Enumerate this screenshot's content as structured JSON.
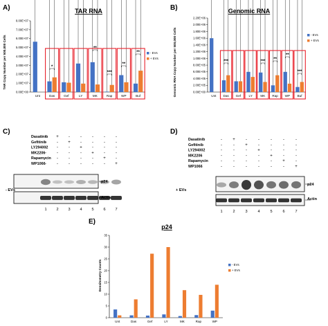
{
  "colors": {
    "minus_ev": "#4472c4",
    "plus_ev": "#ed7d31",
    "highlight": "#e8202a"
  },
  "panels": {
    "a": {
      "label": "A)",
      "title": "TAR RNA",
      "ylabel": "TAR Copy Number per 500,000 Cells",
      "sig": [
        "*",
        "**",
        "***",
        "**",
        "**"
      ]
    },
    "b": {
      "label": "B)",
      "title": "Genomic RNA",
      "ylabel": "Genomic RNA Copy Number per 500,000 Cells",
      "sig": [
        "***",
        "***",
        "**",
        "**",
        "***"
      ]
    },
    "c": {
      "label": "C)",
      "treatments": [
        "Dasatinib",
        "Gefitinib",
        "LY294002",
        "MK2206",
        "Rapamycin",
        "WP1066"
      ],
      "side_label": "- EVs",
      "band_top": "p24",
      "band_bottom": "Actin"
    },
    "d": {
      "label": "D)",
      "treatments": [
        "Dasatinib",
        "Gefitinib",
        "LY294002",
        "MK2206",
        "Rapamycin",
        "WP1066"
      ],
      "side_label": "+ EVs",
      "band_top": "p24",
      "band_bottom": "Actin"
    },
    "e": {
      "label": "E)",
      "title": "p24",
      "ylabel": "Densitometry Counts"
    }
  },
  "blot_matrix": [
    [
      "-",
      "+",
      "-",
      "-",
      "-",
      "-",
      "-"
    ],
    [
      "-",
      "-",
      "+",
      "-",
      "-",
      "-",
      "-"
    ],
    [
      "-",
      "-",
      "-",
      "+",
      "-",
      "-",
      "-"
    ],
    [
      "-",
      "-",
      "-",
      "-",
      "+",
      "-",
      "-"
    ],
    [
      "-",
      "-",
      "-",
      "-",
      "-",
      "+",
      "-"
    ],
    [
      "-",
      "-",
      "-",
      "-",
      "-",
      "-",
      "+"
    ]
  ],
  "lanes": [
    "1",
    "2",
    "3",
    "4",
    "5",
    "6",
    "7"
  ],
  "chart_data": [
    {
      "type": "bar",
      "title": "TAR RNA",
      "ylabel": "TAR Copy Number per 500,000 Cells",
      "categories": [
        "Unt",
        "Das",
        "Gef",
        "LY",
        "MK",
        "Rap",
        "WP",
        "Buf"
      ],
      "series": [
        {
          "name": "- EVs",
          "values": [
            56500000.0,
            12000000.0,
            11000000.0,
            32000000.0,
            33500000.0,
            500000.0,
            19000000.0,
            9500000.0
          ]
        },
        {
          "name": "+ EVs",
          "values": [
            0,
            16500000.0,
            10500000.0,
            9500000.0,
            8500000.0,
            8000000.0,
            11000000.0,
            24000000.0
          ]
        }
      ],
      "yticks": [
        "0.00E+00",
        "1.00E+07",
        "2.00E+07",
        "3.00E+07",
        "4.00E+07",
        "5.00E+07",
        "6.00E+07",
        "7.00E+07",
        "8.00E+07"
      ],
      "ylim": [
        0,
        80000000.0
      ],
      "legend": "right"
    },
    {
      "type": "bar",
      "title": "Genomic RNA",
      "ylabel": "Genomic RNA Copy Number per 500,000 Cells",
      "categories": [
        "Unt",
        "Das",
        "Gef",
        "LY",
        "MK",
        "Rap",
        "WP",
        "Buf"
      ],
      "series": [
        {
          "name": "- EVs",
          "values": [
            1600000.0,
            350000.0,
            320000.0,
            600000.0,
            580000.0,
            200000.0,
            600000.0,
            150000.0
          ]
        },
        {
          "name": "+ EVs",
          "values": [
            0,
            500000.0,
            320000.0,
            450000.0,
            300000.0,
            500000.0,
            250000.0,
            300000.0
          ]
        }
      ],
      "yticks": [
        "0.00E+00",
        "2.00E+05",
        "4.00E+05",
        "6.00E+05",
        "8.00E+05",
        "1.00E+06",
        "1.20E+06",
        "1.40E+06",
        "1.60E+06",
        "1.80E+06",
        "2.00E+06",
        "2.20E+06"
      ],
      "ylim": [
        0,
        2200000.0
      ],
      "legend": "right"
    },
    {
      "type": "bar",
      "title": "p24",
      "ylabel": "Densitometry Counts",
      "categories": [
        "Unt",
        "Das",
        "Gef",
        "LY",
        "MK",
        "Rap",
        "WP"
      ],
      "series": [
        {
          "name": "- EVs",
          "values": [
            3.5,
            1,
            0.9,
            1.4,
            0.7,
            1.1,
            3
          ]
        },
        {
          "name": "+ EVs",
          "values": [
            1,
            7.8,
            27.2,
            30,
            11.7,
            9.7,
            14
          ]
        }
      ],
      "yticks": [
        "0",
        "5",
        "10",
        "15",
        "20",
        "25",
        "30",
        "35"
      ],
      "ylim": [
        0,
        35
      ],
      "legend": "right"
    }
  ]
}
